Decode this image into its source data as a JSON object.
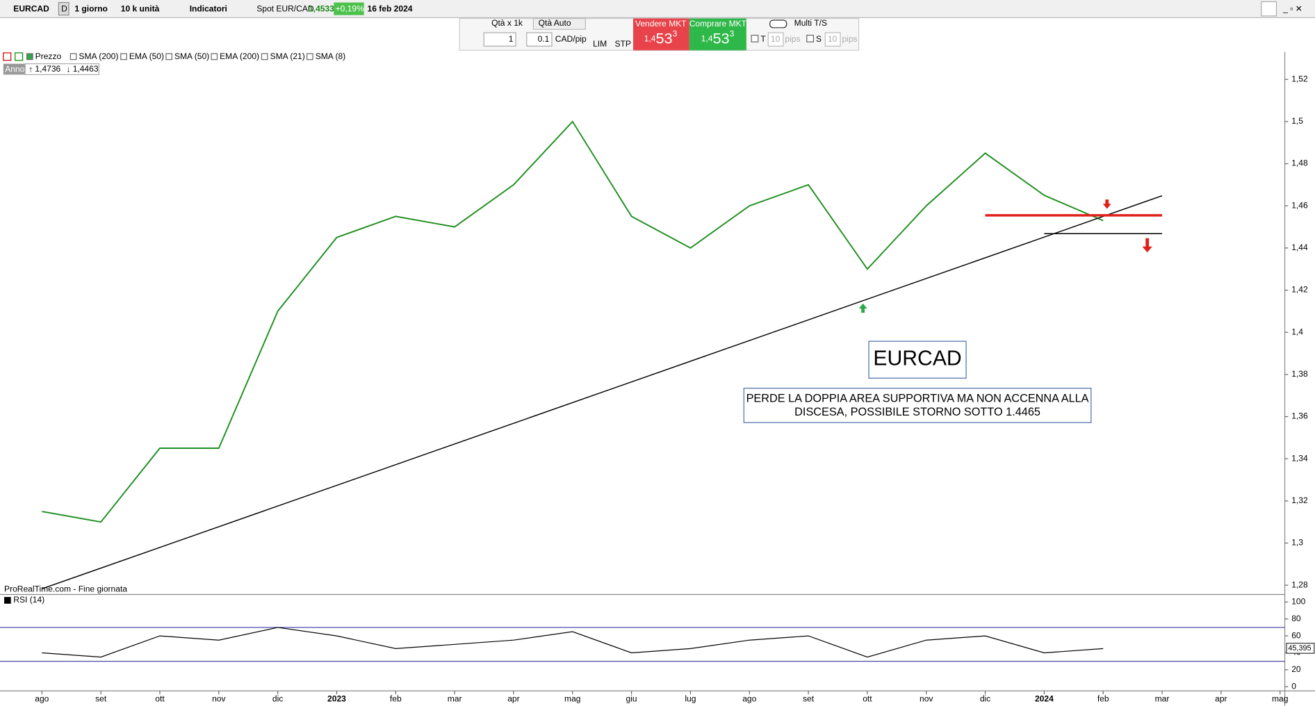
{
  "toolbar": {
    "symbol": "EURCAD",
    "period_badge": "D",
    "timeframe": "1 giorno",
    "quantity": "10 k unità",
    "indicators": "Indicatori",
    "instrument": "Spot EUR/CAD",
    "price": "1,4533",
    "change": "+0,19%",
    "date": "16 feb 2024"
  },
  "order_panel": {
    "qty_label": "Qtà  x 1k",
    "qty_auto": "Qtà Auto",
    "qty": "1",
    "pip_value": "0.1",
    "pip_unit": "CAD/pip",
    "lim": "LIM",
    "stp": "STP",
    "sell_label": "Vendere MKT",
    "sell": {
      "small": "1,4",
      "big": "53",
      "pip": "3"
    },
    "buy_label": "Comprare MKT",
    "buy": {
      "small": "1,4",
      "big": "53",
      "pip": "3"
    },
    "multi": "Multi T/S",
    "t": "T",
    "t_pips": "10",
    "t_unit": "pips",
    "s": "S",
    "s_pips": "10",
    "s_unit": "pips"
  },
  "indicator_bar": [
    "Prezzo",
    "SMA (200)",
    "EMA (50)",
    "SMA (50)",
    "EMA (200)",
    "SMA (21)",
    "SMA (8)"
  ],
  "year_range": {
    "label": "Anno",
    "high": "1,4736",
    "low": "1,4463"
  },
  "footer_note": "ProRealTime.com - Fine giornata",
  "chart_data": [
    {
      "type": "line",
      "color": "#1f8f1f",
      "x": [
        "2022-08",
        "2022-09",
        "2022-10",
        "2022-11",
        "2022-12",
        "2023-01",
        "2023-02",
        "2023-03",
        "2023-04",
        "2023-05",
        "2023-06",
        "2023-07",
        "2023-08",
        "2023-09",
        "2023-10",
        "2023-11",
        "2023-12",
        "2024-01",
        "2024-02"
      ],
      "values": [
        1.315,
        1.31,
        1.345,
        1.345,
        1.41,
        1.445,
        1.455,
        1.45,
        1.47,
        1.5,
        1.455,
        1.44,
        1.46,
        1.47,
        1.43,
        1.46,
        1.485,
        1.465,
        1.453
      ],
      "ylim": [
        1.276,
        1.533
      ],
      "yticks": [
        {
          "value": 1.28,
          "label": "1,28"
        },
        {
          "value": 1.3,
          "label": "1,3"
        },
        {
          "value": 1.32,
          "label": "1,32"
        },
        {
          "value": 1.34,
          "label": "1,34"
        },
        {
          "value": 1.36,
          "label": "1,36"
        },
        {
          "value": 1.38,
          "label": "1,38"
        },
        {
          "value": 1.4,
          "label": "1,4"
        },
        {
          "value": 1.42,
          "label": "1,42"
        },
        {
          "value": 1.44,
          "label": "1,44"
        },
        {
          "value": 1.46,
          "label": "1,46"
        },
        {
          "value": 1.48,
          "label": "1,48"
        },
        {
          "value": 1.5,
          "label": "1,5"
        },
        {
          "value": 1.52,
          "label": "1,52"
        }
      ],
      "xticks": [
        {
          "value": "2022-08",
          "label": "ago"
        },
        {
          "value": "2022-09",
          "label": "set"
        },
        {
          "value": "2022-10",
          "label": "ott"
        },
        {
          "value": "2022-11",
          "label": "nov"
        },
        {
          "value": "2022-12",
          "label": "dic"
        },
        {
          "value": "2023-01",
          "label": "2023"
        },
        {
          "value": "2023-02",
          "label": "feb"
        },
        {
          "value": "2023-03",
          "label": "mar"
        },
        {
          "value": "2023-04",
          "label": "apr"
        },
        {
          "value": "2023-05",
          "label": "mag"
        },
        {
          "value": "2023-06",
          "label": "giu"
        },
        {
          "value": "2023-07",
          "label": "lug"
        },
        {
          "value": "2023-08",
          "label": "ago"
        },
        {
          "value": "2023-09",
          "label": "set"
        },
        {
          "value": "2023-10",
          "label": "ott"
        },
        {
          "value": "2023-11",
          "label": "nov"
        },
        {
          "value": "2023-12",
          "label": "dic"
        },
        {
          "value": "2024-01",
          "label": "2024"
        },
        {
          "value": "2024-02",
          "label": "feb"
        },
        {
          "value": "2024-03",
          "label": "mar"
        },
        {
          "value": "2024-04",
          "label": "apr"
        },
        {
          "value": "2024-05",
          "label": "mag"
        }
      ],
      "lines": [
        {
          "x": [
            "2022-08",
            "2024-03"
          ],
          "y": [
            1.2783,
            1.4648
          ],
          "color": "#000000"
        },
        {
          "x": [
            "2023-12",
            "2024-03"
          ],
          "y": [
            1.4555,
            1.4555
          ],
          "color": "#e0201a"
        },
        {
          "x": [
            "2024-01",
            "2024-03"
          ],
          "y": [
            1.4468,
            1.4468
          ],
          "color": "#000000"
        }
      ],
      "title_box": "EURCAD",
      "note": [
        "PERDE LA DOPPIA AREA SUPPORTIVA MA NON ACCENNA ALLA",
        "DISCESA, POSSIBILE STORNO SOTTO 1.4465"
      ]
    },
    {
      "type": "line",
      "title": "RSI (14)",
      "color": "#000000",
      "x": [
        "2022-08",
        "2022-09",
        "2022-10",
        "2022-11",
        "2022-12",
        "2023-01",
        "2023-02",
        "2023-03",
        "2023-04",
        "2023-05",
        "2023-06",
        "2023-07",
        "2023-08",
        "2023-09",
        "2023-10",
        "2023-11",
        "2023-12",
        "2024-01",
        "2024-02"
      ],
      "values": [
        40,
        35,
        60,
        55,
        70,
        60,
        45,
        50,
        55,
        65,
        40,
        45,
        55,
        60,
        35,
        55,
        60,
        40,
        45
      ],
      "ylim": [
        0,
        100
      ],
      "yticks": [
        0,
        20,
        40,
        60,
        80,
        100
      ],
      "levels": [
        70,
        30
      ],
      "level_color": "#3a3a9a",
      "last": {
        "value": 45.395,
        "label": "45,395"
      }
    }
  ]
}
